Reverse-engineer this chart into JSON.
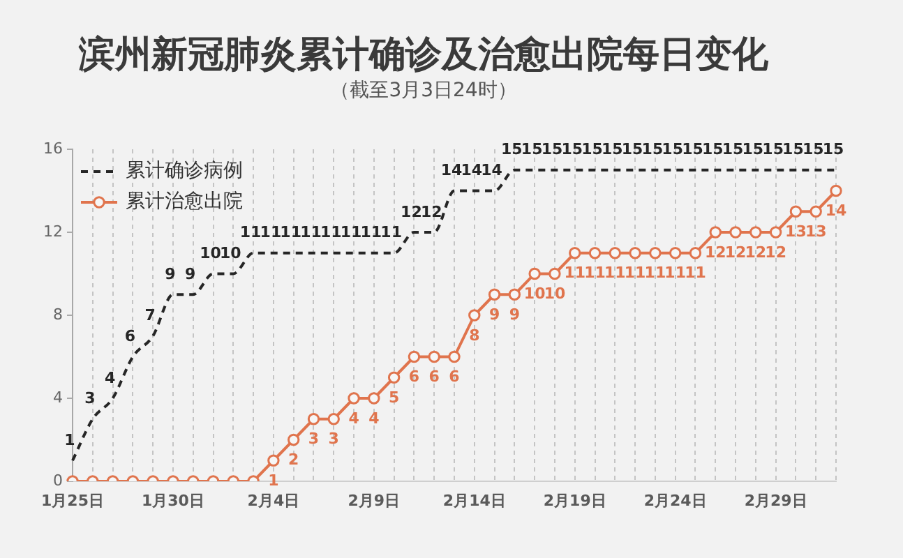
{
  "chart_data": {
    "type": "line",
    "title": "滨州新冠肺炎累计确诊及治愈出院每日变化",
    "subtitle": "（截至3月3日24时）",
    "categories": [
      "1月25日",
      null,
      null,
      null,
      null,
      "1月30日",
      null,
      null,
      null,
      null,
      "2月4日",
      null,
      null,
      null,
      null,
      "2月9日",
      null,
      null,
      null,
      null,
      "2月14日",
      null,
      null,
      null,
      null,
      "2月19日",
      null,
      null,
      null,
      null,
      "2月24日",
      null,
      null,
      null,
      null,
      "2月29日",
      null,
      null,
      null
    ],
    "series": [
      {
        "name": "累计确诊病例",
        "color": "#262626",
        "line_style": "dashed",
        "marker": "none",
        "values": [
          1,
          3,
          4,
          6,
          7,
          9,
          9,
          10,
          10,
          11,
          11,
          11,
          11,
          11,
          11,
          11,
          11,
          12,
          12,
          14,
          14,
          14,
          15,
          15,
          15,
          15,
          15,
          15,
          15,
          15,
          15,
          15,
          15,
          15,
          15,
          15,
          15,
          15,
          15
        ],
        "value_labels": [
          "1",
          "3",
          "4",
          "6",
          "7",
          "9",
          "9",
          "10",
          "10",
          "11",
          "11",
          "11",
          "11",
          "11",
          "11",
          "11",
          "11",
          "12",
          "12",
          "14",
          "14",
          "14",
          "15",
          "15",
          "15",
          "15",
          "15",
          "15",
          "15",
          "15",
          "15",
          "15",
          "15",
          "15",
          "15",
          "15",
          "15",
          "15",
          "15"
        ]
      },
      {
        "name": "累计治愈出院",
        "color": "#e0744d",
        "line_style": "solid",
        "marker": "circle",
        "values": [
          0,
          0,
          0,
          0,
          0,
          0,
          0,
          0,
          0,
          0,
          1,
          2,
          3,
          3,
          4,
          4,
          5,
          6,
          6,
          6,
          8,
          9,
          9,
          10,
          10,
          11,
          11,
          11,
          11,
          11,
          11,
          11,
          12,
          12,
          12,
          12,
          13,
          13,
          14
        ],
        "value_labels": [
          null,
          null,
          null,
          null,
          null,
          null,
          null,
          null,
          null,
          null,
          "1",
          "2",
          "3",
          "3",
          "4",
          "4",
          "5",
          "6",
          "6",
          "6",
          "8",
          "9",
          "9",
          "10",
          "10",
          "11",
          "11",
          "11",
          "11",
          "11",
          "11",
          "11",
          "12",
          "12",
          "12",
          "12",
          "13",
          "13",
          "14"
        ]
      }
    ],
    "ylim": [
      0,
      16
    ],
    "yticks": [
      0,
      4,
      8,
      12,
      16
    ],
    "grid": "x",
    "legend": "top left"
  }
}
